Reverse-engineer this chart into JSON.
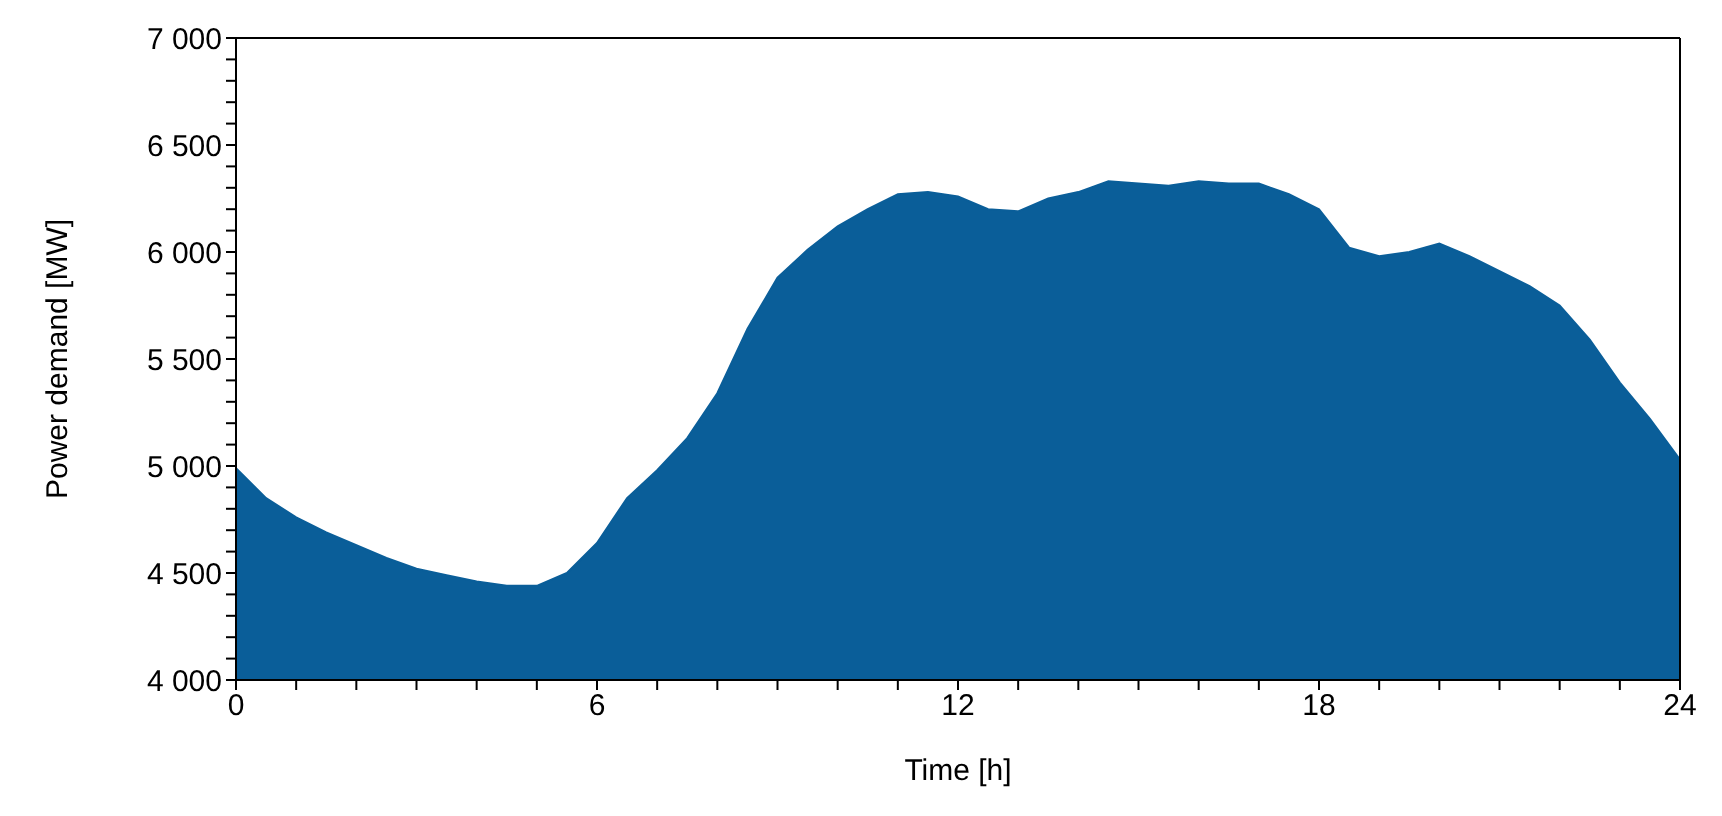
{
  "chart_data": {
    "type": "area",
    "xlabel": "Time [h]",
    "ylabel": "Power demand [MW]",
    "x": [
      0,
      0.5,
      1,
      1.5,
      2,
      2.5,
      3,
      3.5,
      4,
      4.5,
      5,
      5.5,
      6,
      6.5,
      7,
      7.5,
      8,
      8.5,
      9,
      9.5,
      10,
      10.5,
      11,
      11.5,
      12,
      12.5,
      13,
      13.5,
      14,
      14.5,
      15,
      15.5,
      16,
      16.5,
      17,
      17.5,
      18,
      18.5,
      19,
      19.5,
      20,
      20.5,
      21,
      21.5,
      22,
      22.5,
      23,
      23.5,
      24
    ],
    "series": [
      {
        "color": "#0a5e99",
        "values": [
          4990,
          4850,
          4760,
          4690,
          4630,
          4570,
          4520,
          4490,
          4460,
          4440,
          4440,
          4500,
          4640,
          4850,
          4980,
          5130,
          5340,
          5640,
          5880,
          6010,
          6120,
          6200,
          6270,
          6280,
          6260,
          6200,
          6190,
          6250,
          6280,
          6330,
          6320,
          6310,
          6330,
          6320,
          6320,
          6270,
          6200,
          6020,
          5980,
          6000,
          6040,
          5980,
          5910,
          5840,
          5750,
          5590,
          5390,
          5220,
          5030
        ]
      }
    ],
    "xlim": [
      0,
      24
    ],
    "xticks": [
      0,
      {
        "value": 1,
        "label": null
      },
      {
        "value": 2,
        "label": null
      },
      {
        "value": 3,
        "label": null
      },
      {
        "value": 4,
        "label": null
      },
      {
        "value": 5,
        "label": null
      },
      6,
      {
        "value": 7,
        "label": null
      },
      {
        "value": 8,
        "label": null
      },
      {
        "value": 9,
        "label": null
      },
      {
        "value": 10,
        "label": null
      },
      {
        "value": 11,
        "label": null
      },
      12,
      {
        "value": 13,
        "label": null
      },
      {
        "value": 14,
        "label": null
      },
      {
        "value": 15,
        "label": null
      },
      {
        "value": 16,
        "label": null
      },
      {
        "value": 17,
        "label": null
      },
      18,
      {
        "value": 19,
        "label": null
      },
      {
        "value": 20,
        "label": null
      },
      {
        "value": 21,
        "label": null
      },
      {
        "value": 22,
        "label": null
      },
      {
        "value": 23,
        "label": null
      },
      24
    ],
    "ylim": [
      4000,
      7000
    ],
    "yticks": [
      {
        "value": 4000,
        "label": "4 000"
      },
      {
        "value": 4100,
        "label": null
      },
      {
        "value": 4200,
        "label": null
      },
      {
        "value": 4300,
        "label": null
      },
      {
        "value": 4400,
        "label": null
      },
      {
        "value": 4500,
        "label": "4 500"
      },
      {
        "value": 4600,
        "label": null
      },
      {
        "value": 4700,
        "label": null
      },
      {
        "value": 4800,
        "label": null
      },
      {
        "value": 4900,
        "label": null
      },
      {
        "value": 5000,
        "label": "5 000"
      },
      {
        "value": 5100,
        "label": null
      },
      {
        "value": 5200,
        "label": null
      },
      {
        "value": 5300,
        "label": null
      },
      {
        "value": 5400,
        "label": null
      },
      {
        "value": 5500,
        "label": "5 500"
      },
      {
        "value": 5600,
        "label": null
      },
      {
        "value": 5700,
        "label": null
      },
      {
        "value": 5800,
        "label": null
      },
      {
        "value": 5900,
        "label": null
      },
      {
        "value": 6000,
        "label": "6 000"
      },
      {
        "value": 6100,
        "label": null
      },
      {
        "value": 6200,
        "label": null
      },
      {
        "value": 6300,
        "label": null
      },
      {
        "value": 6400,
        "label": null
      },
      {
        "value": 6500,
        "label": "6 500"
      },
      {
        "value": 6600,
        "label": null
      },
      {
        "value": 6700,
        "label": null
      },
      {
        "value": 6800,
        "label": null
      },
      {
        "value": 6900,
        "label": null
      },
      {
        "value": 7000,
        "label": "7 000"
      }
    ],
    "grid": false,
    "legend": false
  }
}
